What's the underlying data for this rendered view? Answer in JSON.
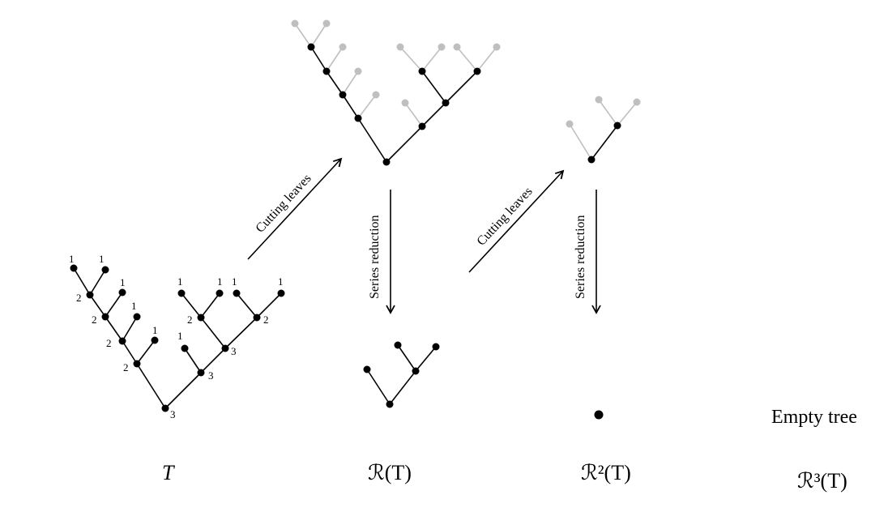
{
  "captions": {
    "t": "T",
    "r1": "ℛ(T)",
    "r2": "ℛ²(T)",
    "r3": "ℛ³(T)"
  },
  "arrows": {
    "cut1": "Cutting leaves",
    "series1": "Series reduction",
    "cut2": "Cutting leaves",
    "series2": "Series reduction"
  },
  "empty_label": "Empty tree",
  "node_labels": {
    "t_leaf_a": "1",
    "t_leaf_b": "1",
    "t_leaf_c": "1",
    "t_leaf_d": "1",
    "t_leaf_e": "1",
    "t_left_1": "2",
    "t_left_2": "2",
    "t_left_3": "2",
    "t_left_4": "2",
    "t_root": "3",
    "t_right_leaf_1": "1",
    "t_right_leaf_2": "1",
    "t_right_leaf_3": "1",
    "t_right_leaf_4": "1",
    "t_right_leaf_5": "1",
    "t_right_mid_2a": "2",
    "t_right_mid_2b": "2",
    "t_right_3a": "3",
    "t_right_3b": "3"
  },
  "colors": {
    "ink": "#000000",
    "cut": "#bfbfbf"
  }
}
